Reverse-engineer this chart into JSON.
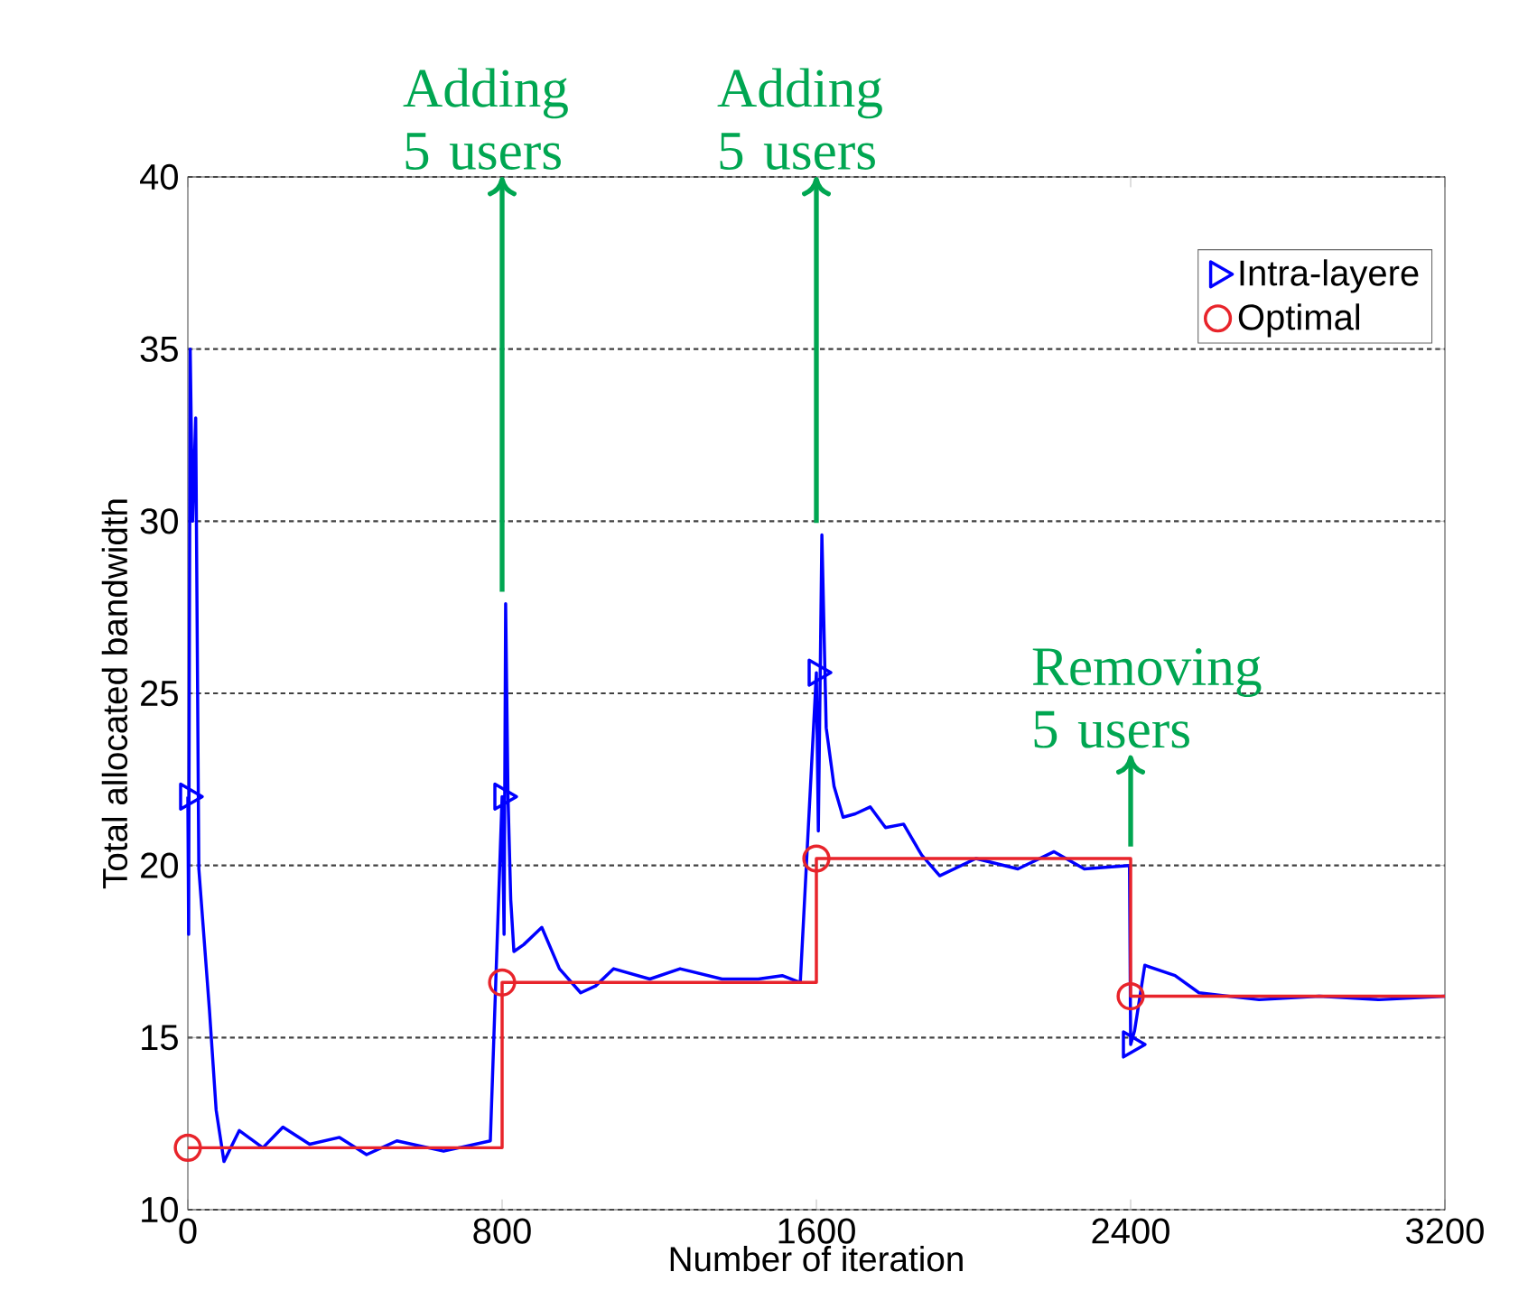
{
  "chart_data": {
    "type": "line",
    "xlabel": "Number of iteration",
    "ylabel": "Total allocated bandwidth",
    "xlim": [
      0,
      3200
    ],
    "ylim": [
      10,
      40
    ],
    "xticks": [
      0,
      800,
      1600,
      2400,
      3200
    ],
    "yticks": [
      10,
      15,
      20,
      25,
      30,
      35,
      40
    ],
    "grid": "y",
    "legend": "top right",
    "series": [
      {
        "color": "#0000ff",
        "x": [
          0,
          2,
          6,
          12,
          20,
          28,
          55,
          72,
          92,
          131,
          191,
          242,
          310,
          386,
          455,
          532,
          651,
          770,
          800,
          805,
          809,
          815,
          822,
          830,
          855,
          901,
          946,
          1000,
          1038,
          1084,
          1176,
          1253,
          1360,
          1452,
          1513,
          1559,
          1600,
          1605,
          1614,
          1625,
          1645,
          1668,
          1699,
          1737,
          1776,
          1822,
          1868,
          1914,
          2006,
          2113,
          2205,
          2282,
          2397,
          2400,
          2410,
          2436,
          2513,
          2574,
          2727,
          2880,
          3033,
          3200
        ],
        "values": [
          22,
          18,
          35,
          30,
          33,
          19.9,
          15.8,
          12.9,
          11.4,
          12.3,
          11.8,
          12.4,
          11.9,
          12.1,
          11.6,
          12.0,
          11.7,
          12.0,
          22,
          18,
          27.6,
          22,
          19,
          17.5,
          17.7,
          18.2,
          17.0,
          16.3,
          16.5,
          17.0,
          16.7,
          17.0,
          16.7,
          16.7,
          16.8,
          16.6,
          25.6,
          21,
          29.6,
          24,
          22.3,
          21.4,
          21.5,
          21.7,
          21.1,
          21.2,
          20.3,
          19.7,
          20.2,
          19.9,
          20.4,
          19.9,
          20.0,
          14.8,
          15.2,
          17.1,
          16.8,
          16.3,
          16.1,
          16.2,
          16.1,
          16.2
        ]
      },
      {
        "color": "#e8242b",
        "type": "step",
        "x": [
          0,
          800,
          1600,
          2400,
          3200
        ],
        "values": [
          11.8,
          16.6,
          20.2,
          16.2,
          16.2
        ]
      },
      {
        "name": "Intra-layere",
        "color": "#0000ff",
        "type": "scatter",
        "marker": "triangle",
        "x": [
          0,
          800,
          1600,
          2400
        ],
        "values": [
          22,
          22,
          25.6,
          14.8
        ]
      },
      {
        "name": "Optimal",
        "color": "#e8242b",
        "type": "scatter",
        "marker": "circle",
        "x": [
          0,
          800,
          1600,
          2400
        ],
        "values": [
          11.8,
          16.6,
          20.2,
          16.2
        ]
      }
    ],
    "annotations": [
      {
        "text": "Adding 5 users",
        "x": 800,
        "y": 27.6
      },
      {
        "text": "Adding 5 users",
        "x": 1600,
        "y": 29.6
      },
      {
        "text": "Removing 5 users",
        "x": 2400,
        "y": 20.2
      }
    ]
  }
}
